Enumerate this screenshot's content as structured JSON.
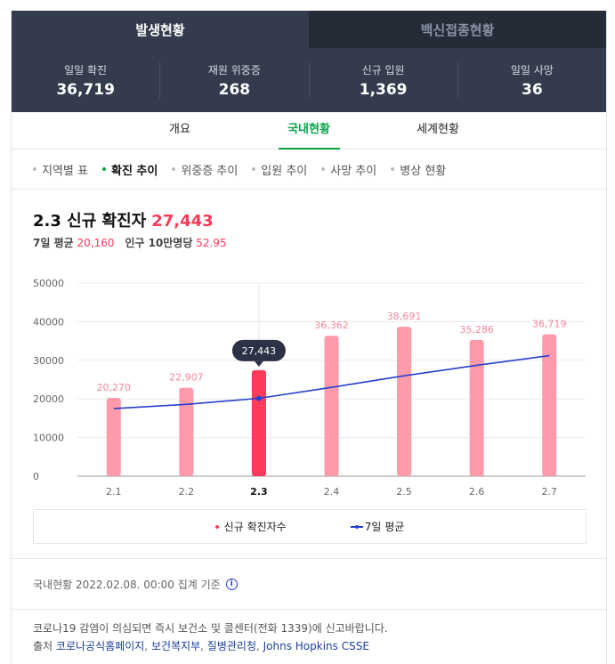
{
  "top_tabs": {
    "active": "발생현황",
    "inactive": "백신접종현황"
  },
  "stats": [
    {
      "label": "일일 확진",
      "value": "36,719"
    },
    {
      "label": "재원 위중증",
      "value": "268"
    },
    {
      "label": "신규 입원",
      "value": "1,369"
    },
    {
      "label": "일일 사망",
      "value": "36"
    }
  ],
  "sub_tabs": [
    "개요",
    "국내현황",
    "세계현황"
  ],
  "menu": [
    "지역별 표",
    "확진 추이",
    "위중증 추이",
    "입원 추이",
    "사망 추이",
    "병상 현황"
  ],
  "title": {
    "prefix": "2.3 신규 확진자",
    "value": "27,443"
  },
  "subtitle": {
    "avg_label": "7일 평균",
    "avg_value": "20,160",
    "per_label": "인구 10만명당",
    "per_value": "52.95"
  },
  "colors": {
    "bar": "#ff9aaa",
    "bar_selected": "#ff3a5a",
    "line": "#2440cf",
    "accent_green": "#0aa448",
    "header_bg": "#333b4c"
  },
  "chart_data": {
    "type": "bar",
    "categories": [
      "2.1",
      "2.2",
      "2.3",
      "2.4",
      "2.5",
      "2.6",
      "2.7"
    ],
    "selected": "2.3",
    "series": [
      {
        "name": "신규 확진자수",
        "type": "bar",
        "values": [
          20270,
          22907,
          27443,
          36362,
          38691,
          35286,
          36719
        ]
      },
      {
        "name": "7일 평균",
        "type": "line",
        "values": [
          17500,
          18600,
          20160,
          23000,
          26000,
          28700,
          31200
        ]
      }
    ],
    "data_labels": [
      "20,270",
      "22,907",
      "27,443",
      "36,362",
      "38,691",
      "35,286",
      "36,719"
    ],
    "yticks": [
      "0",
      "10000",
      "20000",
      "30000",
      "40000",
      "50000"
    ],
    "ylim": [
      0,
      50000
    ],
    "grid": "horizontal",
    "tooltip": "27,443"
  },
  "legend": {
    "bars": "신규 확진자수",
    "line": "7일 평균"
  },
  "basis": "국내현황 2022.02.08. 00:00 집계 기준",
  "notice": {
    "line1": "코로나19 감염이 의심되면 즉시 보건소 및 콜센터(전화 1339)에 신고바랍니다.",
    "source_label": "출처",
    "sources": [
      "코로나공식홈페이지",
      "보건복지부",
      "질병관리청",
      "Johns Hopkins CSSE"
    ]
  }
}
